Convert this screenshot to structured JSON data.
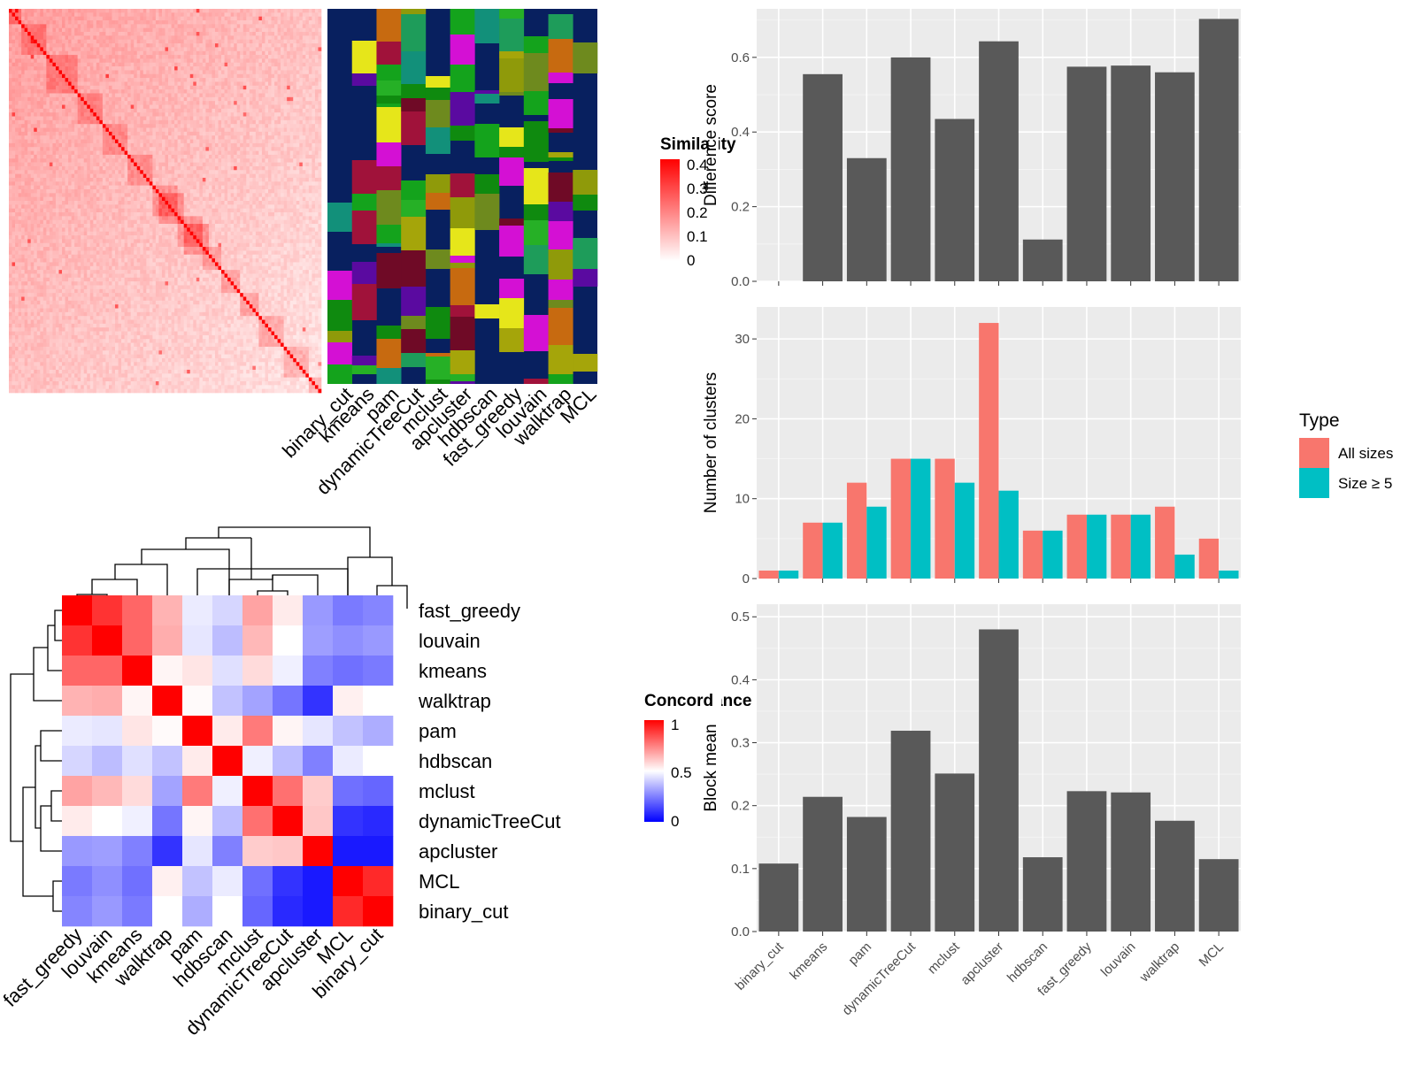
{
  "methods": [
    "binary_cut",
    "kmeans",
    "pam",
    "dynamicTreeCut",
    "mclust",
    "apcluster",
    "hdbscan",
    "fast_greedy",
    "louvain",
    "walktrap",
    "MCL"
  ],
  "colors": {
    "panel_bg": "#ebebeb",
    "grid": "#ffffff",
    "bar_dark": "#595959",
    "all_sizes": "#f8766d",
    "size_ge5": "#00bfc4",
    "partition_bg": "#08205f",
    "concord_high": "#ff0000",
    "concord_mid": "#ffffff",
    "concord_low": "#0000ff"
  },
  "partition_palette": [
    "#a0123a",
    "#14a31c",
    "#0f8a0f",
    "#6e8a1e",
    "#8f9a0a",
    "#12907a",
    "#6f0a26",
    "#d410d4",
    "#e6e61a",
    "#c76a10",
    "#a5a50a",
    "#26b026",
    "#5a0aa0",
    "#1e9c5a"
  ],
  "similarity_legend": {
    "title": "Similarity",
    "labels": [
      "0.4",
      "0.3",
      "0.2",
      "0.1",
      "0"
    ]
  },
  "concordance_legend": {
    "title": "Concordance",
    "labels": [
      "1",
      "0.5",
      "0"
    ]
  },
  "partition_panel": {
    "labels": [
      "binary_cut",
      "kmeans",
      "pam",
      "dynamicTreeCut",
      "mclust",
      "apcluster",
      "hdbscan",
      "fast_greedy",
      "louvain",
      "walktrap",
      "MCL"
    ]
  },
  "concordance_heatmap": {
    "row_labels": [
      "fast_greedy",
      "louvain",
      "kmeans",
      "walktrap",
      "pam",
      "hdbscan",
      "mclust",
      "dynamicTreeCut",
      "apcluster",
      "MCL",
      "binary_cut"
    ],
    "col_labels": [
      "fast_greedy",
      "louvain",
      "kmeans",
      "walktrap",
      "pam",
      "hdbscan",
      "mclust",
      "dynamicTreeCut",
      "apcluster",
      "MCL",
      "binary_cut"
    ],
    "values": [
      [
        1.0,
        0.9,
        0.8,
        0.65,
        0.46,
        0.42,
        0.68,
        0.54,
        0.3,
        0.24,
        0.26
      ],
      [
        0.9,
        1.0,
        0.8,
        0.66,
        0.45,
        0.37,
        0.64,
        0.5,
        0.31,
        0.28,
        0.3
      ],
      [
        0.8,
        0.8,
        1.0,
        0.52,
        0.55,
        0.44,
        0.57,
        0.47,
        0.25,
        0.22,
        0.24
      ],
      [
        0.65,
        0.66,
        0.52,
        1.0,
        0.51,
        0.38,
        0.32,
        0.23,
        0.1,
        0.53,
        0.5
      ],
      [
        0.46,
        0.45,
        0.55,
        0.51,
        1.0,
        0.54,
        0.76,
        0.52,
        0.45,
        0.38,
        0.34
      ],
      [
        0.42,
        0.37,
        0.44,
        0.38,
        0.54,
        1.0,
        0.47,
        0.37,
        0.25,
        0.46,
        0.5
      ],
      [
        0.68,
        0.64,
        0.57,
        0.32,
        0.76,
        0.47,
        1.0,
        0.78,
        0.6,
        0.22,
        0.2
      ],
      [
        0.54,
        0.5,
        0.47,
        0.23,
        0.52,
        0.37,
        0.78,
        1.0,
        0.61,
        0.1,
        0.08
      ],
      [
        0.3,
        0.31,
        0.25,
        0.1,
        0.45,
        0.25,
        0.6,
        0.61,
        1.0,
        0.05,
        0.05
      ],
      [
        0.24,
        0.28,
        0.22,
        0.53,
        0.38,
        0.46,
        0.22,
        0.1,
        0.05,
        1.0,
        0.92
      ],
      [
        0.26,
        0.3,
        0.24,
        0.5,
        0.34,
        0.5,
        0.2,
        0.08,
        0.05,
        0.92,
        1.0
      ]
    ]
  },
  "chart_data": [
    {
      "type": "bar",
      "ylabel": "Difference score",
      "categories": [
        "binary_cut",
        "kmeans",
        "pam",
        "dynamicTreeCut",
        "mclust",
        "apcluster",
        "hdbscan",
        "fast_greedy",
        "louvain",
        "walktrap",
        "MCL"
      ],
      "values": [
        0.0,
        0.555,
        0.33,
        0.6,
        0.435,
        0.643,
        0.112,
        0.575,
        0.578,
        0.56,
        0.703
      ],
      "ylim": [
        0,
        0.73
      ],
      "yticks": [
        "0.0",
        "0.2",
        "0.4",
        "0.6"
      ],
      "ytick_values": [
        0,
        0.2,
        0.4,
        0.6
      ],
      "grid": true
    },
    {
      "type": "bar",
      "ylabel": "Number of clusters",
      "categories": [
        "binary_cut",
        "kmeans",
        "pam",
        "dynamicTreeCut",
        "mclust",
        "apcluster",
        "hdbscan",
        "fast_greedy",
        "louvain",
        "walktrap",
        "MCL"
      ],
      "series": [
        {
          "name": "All sizes",
          "values": [
            1,
            7,
            12,
            15,
            15,
            32,
            6,
            8,
            8,
            9,
            5
          ]
        },
        {
          "name": "Size ≥ 5",
          "values": [
            1,
            7,
            9,
            15,
            12,
            11,
            6,
            8,
            8,
            3,
            1
          ]
        }
      ],
      "legend_title": "Type",
      "legend_position": "right",
      "ylim": [
        0,
        34
      ],
      "yticks": [
        "0",
        "10",
        "20",
        "30"
      ],
      "ytick_values": [
        0,
        10,
        20,
        30
      ],
      "grid": true
    },
    {
      "type": "bar",
      "ylabel": "Block mean",
      "categories": [
        "binary_cut",
        "kmeans",
        "pam",
        "dynamicTreeCut",
        "mclust",
        "apcluster",
        "hdbscan",
        "fast_greedy",
        "louvain",
        "walktrap",
        "MCL"
      ],
      "values": [
        0.108,
        0.214,
        0.182,
        0.319,
        0.251,
        0.48,
        0.118,
        0.223,
        0.221,
        0.176,
        0.115
      ],
      "ylim": [
        0,
        0.52
      ],
      "yticks": [
        "0.0",
        "0.1",
        "0.2",
        "0.3",
        "0.4",
        "0.5"
      ],
      "ytick_values": [
        0,
        0.1,
        0.2,
        0.3,
        0.4,
        0.5
      ],
      "xtick_labels": [
        "binary_cut",
        "kmeans",
        "pam",
        "dynamicTreeCut",
        "mclust",
        "apcluster",
        "hdbscan",
        "fast_greedy",
        "louvain",
        "walktrap",
        "MCL"
      ],
      "grid": true
    }
  ]
}
